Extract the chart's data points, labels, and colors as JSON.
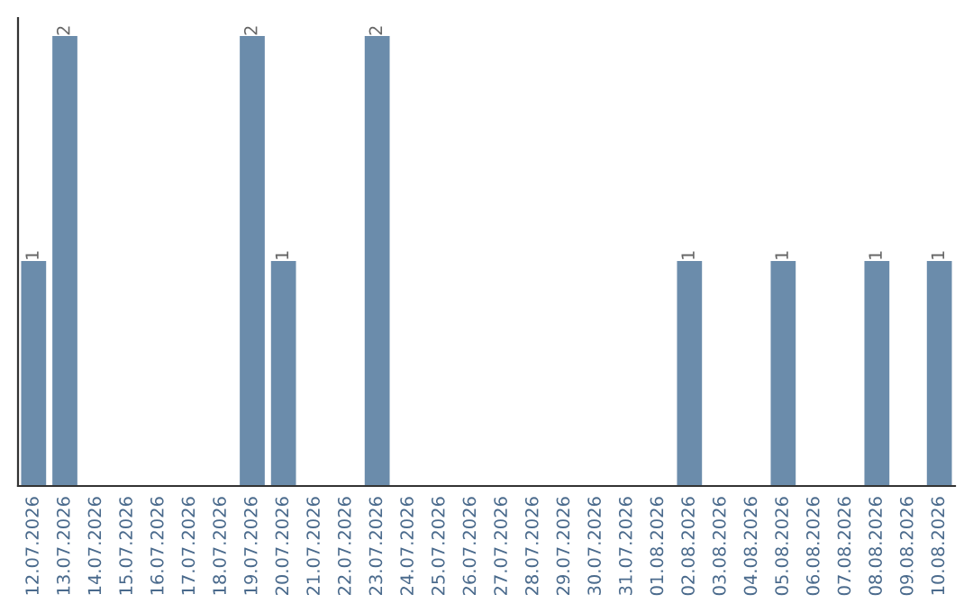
{
  "chart_data": {
    "type": "bar",
    "categories": [
      "12.07.2026",
      "13.07.2026",
      "14.07.2026",
      "15.07.2026",
      "16.07.2026",
      "17.07.2026",
      "18.07.2026",
      "19.07.2026",
      "20.07.2026",
      "21.07.2026",
      "22.07.2026",
      "23.07.2026",
      "24.07.2026",
      "25.07.2026",
      "26.07.2026",
      "27.07.2026",
      "28.07.2026",
      "29.07.2026",
      "30.07.2026",
      "31.07.2026",
      "01.08.2026",
      "02.08.2026",
      "03.08.2026",
      "04.08.2026",
      "05.08.2026",
      "06.08.2026",
      "07.08.2026",
      "08.08.2026",
      "09.08.2026",
      "10.08.2026"
    ],
    "values": [
      1,
      2,
      0,
      0,
      0,
      0,
      0,
      2,
      1,
      0,
      0,
      2,
      0,
      0,
      0,
      0,
      0,
      0,
      0,
      0,
      0,
      1,
      0,
      0,
      1,
      0,
      0,
      1,
      0,
      1
    ],
    "color": "#6b8cab",
    "value_labels": [
      "1",
      "2",
      null,
      null,
      null,
      null,
      null,
      "2",
      "1",
      null,
      null,
      "2",
      null,
      null,
      null,
      null,
      null,
      null,
      null,
      null,
      null,
      "1",
      null,
      null,
      "1",
      null,
      null,
      "1",
      null,
      "1"
    ],
    "grid": false,
    "legend": false
  }
}
